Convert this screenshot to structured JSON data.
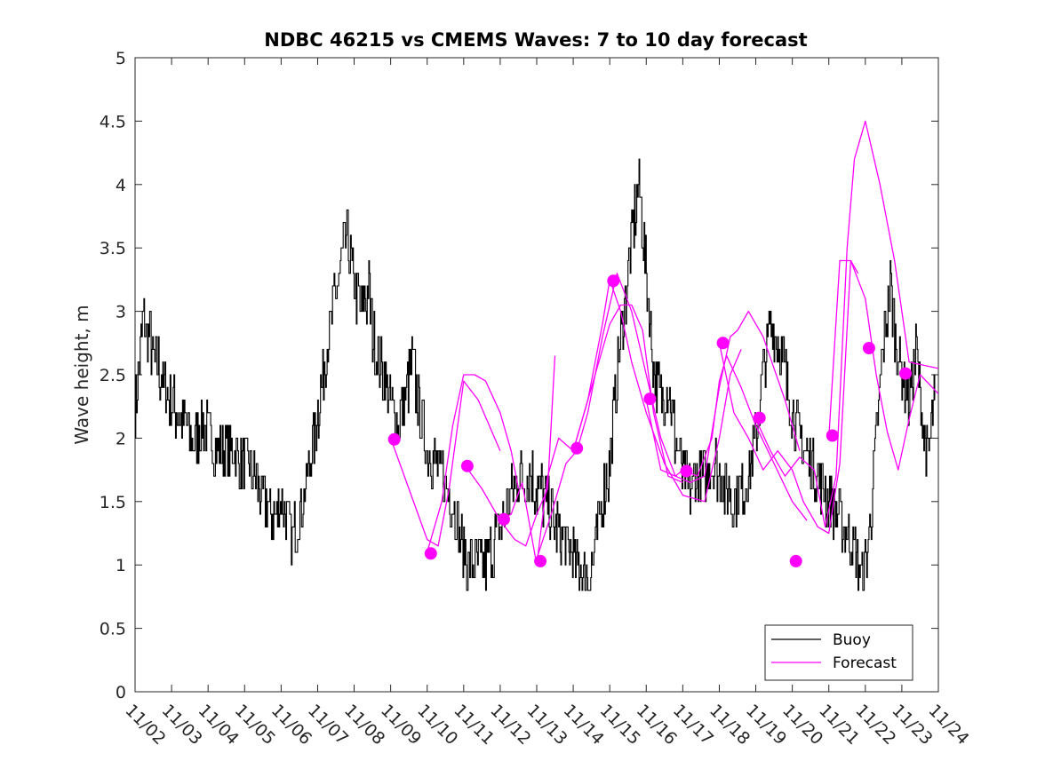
{
  "chart_data": {
    "type": "line",
    "title": "NDBC 46215 vs CMEMS Waves: 7 to 10 day forecast",
    "xlabel": "",
    "ylabel": "Wave height, m",
    "ylim": [
      0,
      5
    ],
    "yticks": [
      "0",
      "0.5",
      "1",
      "1.5",
      "2",
      "2.5",
      "3",
      "3.5",
      "4",
      "4.5",
      "5"
    ],
    "xlim_days": [
      0,
      22
    ],
    "xtick_labels": [
      "11/02",
      "11/03",
      "11/04",
      "11/05",
      "11/06",
      "11/07",
      "11/08",
      "11/09",
      "11/10",
      "11/11",
      "11/12",
      "11/13",
      "11/14",
      "11/15",
      "11/16",
      "11/17",
      "11/18",
      "11/19",
      "11/20",
      "11/21",
      "11/22",
      "11/23",
      "11/24"
    ],
    "grid": false,
    "legend": {
      "position": "bottom-right",
      "entries": [
        "Buoy",
        "Forecast"
      ]
    },
    "colors": {
      "buoy": "#000000",
      "forecast": "#ff00ff"
    },
    "buoy_series": {
      "name": "Buoy",
      "x_days": [
        0,
        0.2,
        0.4,
        0.5,
        0.6,
        0.8,
        1.0,
        1.3,
        1.6,
        1.9,
        2.2,
        2.6,
        3.0,
        3.3,
        3.5,
        3.8,
        4.0,
        4.3,
        4.6,
        4.9,
        5.1,
        5.3,
        5.6,
        5.8,
        6.0,
        6.2,
        6.4,
        6.5,
        6.8,
        7.0,
        7.2,
        7.4,
        7.6,
        7.8,
        8.0,
        8.2,
        8.4,
        8.7,
        8.9,
        9.1,
        9.4,
        9.6,
        9.9,
        10.2,
        10.5,
        10.8,
        11.0,
        11.3,
        11.5,
        11.7,
        11.9,
        12.1,
        12.3,
        12.5,
        12.8,
        13.0,
        13.2,
        13.4,
        13.6,
        13.8,
        14.0,
        14.2,
        14.4,
        14.6,
        14.8,
        15.0,
        15.2,
        15.4,
        15.6,
        15.8,
        16.0,
        16.2,
        16.4,
        16.6,
        16.8,
        17.0,
        17.2,
        17.4,
        17.6,
        17.8,
        18.0,
        18.2,
        18.5,
        18.8,
        19.0,
        19.2,
        19.4,
        19.6,
        19.8,
        19.95,
        20.1,
        20.3,
        20.5,
        20.7,
        20.8,
        21.0,
        21.2,
        21.4,
        21.5,
        21.7,
        21.9
      ],
      "values": [
        2.2,
        2.9,
        2.8,
        2.6,
        2.6,
        2.4,
        2.3,
        2.1,
        2.0,
        2.1,
        1.9,
        1.9,
        1.8,
        1.7,
        1.5,
        1.4,
        1.5,
        1.2,
        1.5,
        2.0,
        2.4,
        2.8,
        3.3,
        3.6,
        3.2,
        3.0,
        3.2,
        2.8,
        2.5,
        2.3,
        2.1,
        2.3,
        2.6,
        2.2,
        1.9,
        1.8,
        1.7,
        1.5,
        1.2,
        1.0,
        0.95,
        1.0,
        1.2,
        1.5,
        1.7,
        1.7,
        1.6,
        1.5,
        1.3,
        1.2,
        1.1,
        1.0,
        0.9,
        0.95,
        1.5,
        1.8,
        2.5,
        3.0,
        3.6,
        4.0,
        3.3,
        2.5,
        2.3,
        2.4,
        2.0,
        1.7,
        1.6,
        1.7,
        1.7,
        1.8,
        1.7,
        1.6,
        1.5,
        1.6,
        1.7,
        2.0,
        2.5,
        2.9,
        2.8,
        2.5,
        2.2,
        2.0,
        1.8,
        1.6,
        1.5,
        1.4,
        1.3,
        1.2,
        1.0,
        0.85,
        1.2,
        2.0,
        2.8,
        3.2,
        2.8,
        2.5,
        2.3,
        2.7,
        2.3,
        1.8,
        2.3
      ]
    },
    "forecast_series": [
      {
        "name": "Forecast",
        "x_days": [
          7.0,
          7.5,
          8.0,
          8.3,
          8.6,
          9.0,
          9.4,
          10.0
        ],
        "values": [
          2.0,
          1.6,
          1.2,
          1.15,
          1.6,
          2.45,
          2.3,
          1.9
        ]
      },
      {
        "name": "Forecast",
        "x_days": [
          8.0,
          8.4,
          8.7,
          9.0,
          9.3,
          9.6,
          10.0,
          10.3,
          10.5
        ],
        "values": [
          1.1,
          1.5,
          2.1,
          2.5,
          2.5,
          2.45,
          2.2,
          1.9,
          1.6
        ]
      },
      {
        "name": "Forecast",
        "x_days": [
          9.0,
          9.5,
          10.0,
          10.4,
          10.7,
          11.0,
          11.3,
          11.5
        ],
        "values": [
          1.8,
          1.6,
          1.35,
          1.2,
          1.15,
          1.4,
          1.6,
          2.65
        ]
      },
      {
        "name": "Forecast",
        "x_days": [
          10.0,
          10.3,
          10.6,
          11.0,
          11.3,
          11.6,
          12.0,
          12.4,
          12.8,
          13.0
        ],
        "values": [
          1.35,
          1.4,
          1.65,
          1.0,
          1.7,
          2.0,
          1.9,
          2.3,
          2.9,
          3.25
        ]
      },
      {
        "name": "Forecast",
        "x_days": [
          11.0,
          11.4,
          11.8,
          12.1,
          12.4,
          12.8,
          13.2,
          13.6,
          14.0,
          14.4,
          14.8,
          15.0
        ],
        "values": [
          1.05,
          1.4,
          1.8,
          1.9,
          2.2,
          2.8,
          3.3,
          3.0,
          2.5,
          2.0,
          1.7,
          1.75
        ]
      },
      {
        "name": "Forecast",
        "x_days": [
          12.0,
          12.5,
          13.0,
          13.3,
          13.6,
          13.9,
          14.2,
          14.6,
          15.0
        ],
        "values": [
          1.9,
          2.4,
          2.9,
          3.05,
          3.05,
          2.85,
          2.2,
          1.7,
          1.65
        ]
      },
      {
        "name": "Forecast",
        "x_days": [
          13.0,
          13.3,
          13.6,
          14.0,
          14.5,
          15.0,
          15.6,
          16.0,
          16.3,
          16.6
        ],
        "values": [
          3.25,
          3.0,
          2.6,
          2.2,
          1.8,
          1.55,
          1.5,
          2.0,
          2.5,
          2.7
        ]
      },
      {
        "name": "Forecast",
        "x_days": [
          14.0,
          14.4,
          14.8,
          15.2,
          15.6,
          16.0,
          16.3,
          16.5,
          16.8,
          17.2,
          17.8,
          18.2
        ],
        "values": [
          2.3,
          1.75,
          1.7,
          1.65,
          1.7,
          2.4,
          2.8,
          2.85,
          3.0,
          2.8,
          2.3,
          1.9
        ]
      },
      {
        "name": "Forecast",
        "x_days": [
          15.0,
          15.4,
          15.8,
          16.0,
          16.2,
          16.6,
          17.0,
          17.5,
          18.0,
          18.4
        ],
        "values": [
          1.75,
          1.7,
          2.0,
          2.45,
          2.65,
          2.4,
          2.1,
          1.8,
          1.5,
          1.35
        ]
      },
      {
        "name": "Forecast",
        "x_days": [
          16.0,
          16.4,
          16.8,
          17.2,
          17.6,
          18.0,
          18.3,
          18.7,
          19.0,
          19.3,
          19.6,
          19.8
        ],
        "values": [
          2.75,
          2.2,
          2.0,
          1.75,
          1.9,
          1.75,
          1.5,
          1.3,
          1.25,
          1.8,
          3.4,
          3.3
        ]
      },
      {
        "name": "Forecast",
        "x_days": [
          17.0,
          17.4,
          17.8,
          18.2,
          18.6,
          18.9,
          19.2,
          19.5,
          19.7,
          20.0,
          20.4,
          20.8,
          21.2,
          22.0
        ],
        "values": [
          2.15,
          1.9,
          1.7,
          1.85,
          1.75,
          1.3,
          1.7,
          3.5,
          4.2,
          4.5,
          4.0,
          3.4,
          2.6,
          2.55
        ]
      },
      {
        "name": "Forecast",
        "x_days": [
          19.0,
          19.3,
          19.6,
          20.0,
          20.3,
          20.6,
          20.9,
          21.2,
          21.5,
          22.0
        ],
        "values": [
          2.0,
          3.4,
          3.4,
          3.1,
          2.5,
          2.05,
          1.75,
          2.15,
          2.5,
          2.35
        ]
      }
    ],
    "forecast_markers": {
      "x_days": [
        7.1,
        8.1,
        9.1,
        10.1,
        11.1,
        12.1,
        13.1,
        14.1,
        15.1,
        16.1,
        17.1,
        18.1,
        19.1,
        20.1,
        21.1
      ],
      "values": [
        1.99,
        1.09,
        1.78,
        1.36,
        1.03,
        1.92,
        3.24,
        2.31,
        1.74,
        2.75,
        2.16,
        1.03,
        2.02,
        2.71,
        2.51
      ]
    }
  }
}
